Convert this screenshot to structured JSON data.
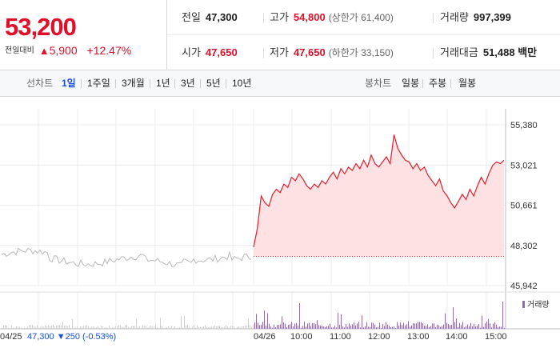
{
  "quote": {
    "price": "53,200",
    "diff_label": "전일대비",
    "diff_icon": "triangle-up-icon",
    "diff_value": "5,900",
    "diff_percent": "+12.47%",
    "prev_close_label": "전일",
    "prev_close": "47,300",
    "high_label": "고가",
    "high": "54,800",
    "upper_limit": "(상한가 61,400)",
    "volume_label": "거래량",
    "volume": "997,399",
    "open_label": "시가",
    "open": "47,650",
    "low_label": "저가",
    "low": "47,650",
    "lower_limit": "(하한가 33,150)",
    "amount_label": "거래대금",
    "amount": "51,488 백만",
    "accent_red": "#e0102a",
    "accent_blue": "#1d4ed8"
  },
  "toolbar": {
    "line_chart_label": "선차트",
    "periods": [
      "1일",
      "1주일",
      "3개월",
      "1년",
      "3년",
      "5년",
      "10년"
    ],
    "active_period": "1일",
    "candle_chart_label": "봉차트",
    "candles": [
      "일봉",
      "주봉",
      "월봉"
    ]
  },
  "chart_data": {
    "type": "line",
    "y_ticks": [
      "55,380",
      "53,021",
      "50,661",
      "48,302",
      "45,942"
    ],
    "ylim": [
      45942,
      55380
    ],
    "prev_day": {
      "date": "04/25",
      "close": "47,300",
      "change_icon": "triangle-down-icon",
      "change": "250",
      "change_percent": "(-0.53%)"
    },
    "today": {
      "date": "04/26",
      "x_ticks": [
        "10:00",
        "11:00",
        "12:00",
        "13:00",
        "14:00",
        "15:00"
      ],
      "price_series": [
        48200,
        49300,
        51200,
        50800,
        50600,
        51300,
        51600,
        51400,
        51900,
        51700,
        52300,
        52100,
        52500,
        52200,
        51800,
        51600,
        51900,
        51700,
        52100,
        51900,
        52300,
        52600,
        52200,
        52800,
        52500,
        52900,
        52700,
        53100,
        52800,
        53300,
        52900,
        53600,
        53100,
        52900,
        53200,
        53500,
        53100,
        54800,
        54000,
        53600,
        53300,
        53200,
        52800,
        53100,
        52700,
        52900,
        52400,
        52100,
        51800,
        52200,
        51500,
        51200,
        50800,
        50500,
        50900,
        51300,
        51000,
        51600,
        51200,
        51800,
        52300,
        51900,
        52500,
        53000,
        53200,
        53100,
        53300
      ],
      "baseline": 47650
    },
    "volume_legend": "거래량",
    "colors": {
      "today_line": "#e51d2c",
      "today_fill": "#fde1e3",
      "prev_line": "#b8b8b8",
      "volume": "#8f6db3"
    },
    "grid": true
  }
}
